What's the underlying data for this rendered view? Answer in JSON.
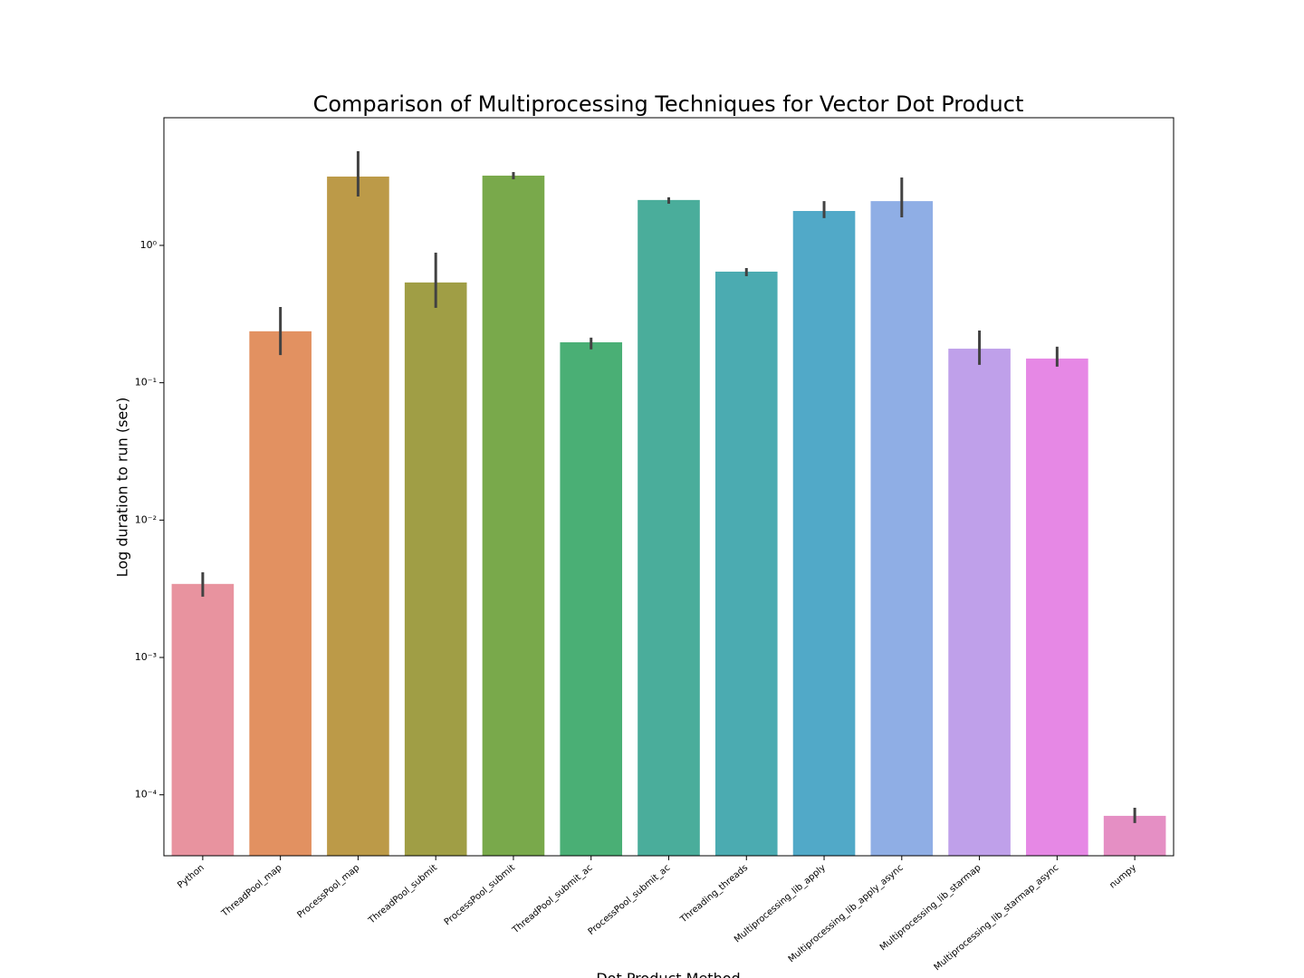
{
  "chart_data": {
    "type": "bar",
    "title": "Comparison of Multiprocessing Techniques for Vector Dot Product",
    "x_label": "Dot Product Method",
    "y_label": "Log duration to run (sec)",
    "log_scale": true,
    "categories": [
      "Python",
      "ThreadPool_map",
      "ProcessPool_map",
      "ThreadPool_submit",
      "ProcessPool_submit",
      "ThreadPool_submit_ac",
      "ProcessPool_submit_ac",
      "Threading_threads",
      "Multiprocessing_lib_apply",
      "Multiprocessing_lib_apply_async",
      "Multiprocessing_lib_starmap",
      "Multiprocessing_lib_starmap_async",
      "numpy"
    ],
    "values": [
      0.00343,
      0.237,
      3.17,
      0.537,
      3.22,
      0.197,
      2.14,
      0.644,
      1.78,
      2.1,
      0.177,
      0.15,
      7.03e-05
    ],
    "error_low": [
      0.00277,
      0.159,
      2.27,
      0.351,
      3.03,
      0.175,
      2.01,
      0.597,
      1.58,
      1.6,
      0.135,
      0.131,
      6.23e-05
    ],
    "error_high": [
      0.00417,
      0.356,
      4.85,
      0.885,
      3.42,
      0.213,
      2.24,
      0.684,
      2.1,
      3.12,
      0.24,
      0.183,
      8.05e-05
    ],
    "colors": [
      "#e8939f",
      "#e29161",
      "#bc9a48",
      "#a09e45",
      "#79a94b",
      "#4aaf75",
      "#4aad9b",
      "#4babb1",
      "#51a9c8",
      "#8faee5",
      "#bfa0ea",
      "#e688e5",
      "#e58fc4"
    ],
    "error_color": "#424242",
    "ylim": [
      3.6e-05,
      8.5
    ],
    "yticks": [
      {
        "value": 0.0001,
        "label": "10⁻⁴"
      },
      {
        "value": 0.001,
        "label": "10⁻³"
      },
      {
        "value": 0.01,
        "label": "10⁻²"
      },
      {
        "value": 0.1,
        "label": "10⁻¹"
      },
      {
        "value": 1,
        "label": "10⁰"
      }
    ],
    "grid": false
  }
}
